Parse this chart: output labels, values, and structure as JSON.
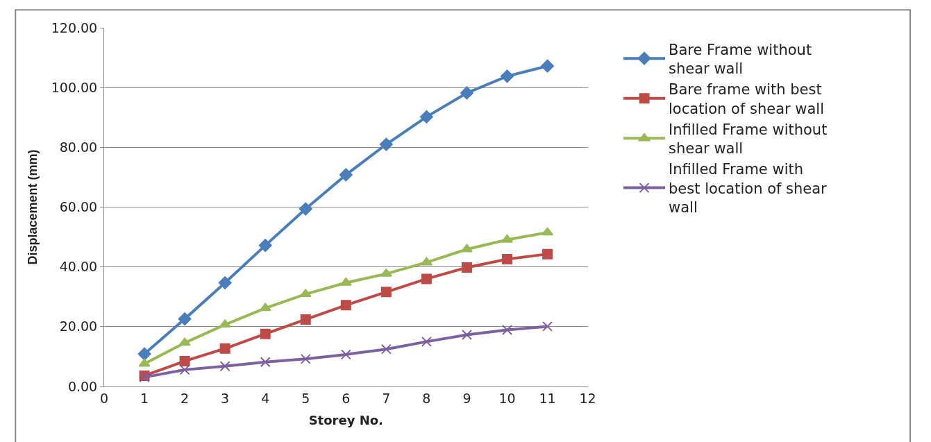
{
  "chart_data": {
    "type": "line",
    "xlabel": "Storey No.",
    "ylabel": "Displacement (mm)",
    "x": [
      1,
      2,
      3,
      4,
      5,
      6,
      7,
      8,
      9,
      10,
      11
    ],
    "xlim": [
      0,
      12
    ],
    "xticks": [
      0,
      1,
      2,
      3,
      4,
      5,
      6,
      7,
      8,
      9,
      10,
      11,
      12
    ],
    "ylim": [
      0,
      120
    ],
    "yticks": [
      {
        "value": 0,
        "label": "0.00"
      },
      {
        "value": 20,
        "label": "20.00"
      },
      {
        "value": 40,
        "label": "40.00"
      },
      {
        "value": 60,
        "label": "60.00"
      },
      {
        "value": 80,
        "label": "80.00"
      },
      {
        "value": 100,
        "label": "100.00"
      },
      {
        "value": 120,
        "label": "120.00"
      }
    ],
    "grid": "y",
    "legend": "right",
    "line_style": "solid",
    "series": [
      {
        "name": "Bare Frame without shear wall",
        "color": "#4a7ebb",
        "marker": "diamond",
        "values": [
          10.9,
          22.6,
          34.7,
          47.2,
          59.4,
          70.8,
          81.0,
          90.2,
          98.2,
          103.8,
          107.2
        ]
      },
      {
        "name": "Bare frame with best location of shear wall",
        "color": "#be4b48",
        "marker": "square",
        "values": [
          3.6,
          8.5,
          12.7,
          17.6,
          22.4,
          27.2,
          31.6,
          36.0,
          39.8,
          42.6,
          44.3
        ]
      },
      {
        "name": "Infilled Frame without shear wall",
        "color": "#98b954",
        "marker": "triangle",
        "values": [
          7.6,
          14.6,
          20.7,
          26.2,
          30.9,
          34.7,
          37.7,
          41.5,
          45.9,
          49.1,
          51.5
        ]
      },
      {
        "name": "Infilled Frame with best location of shear wall",
        "color": "#7d60a0",
        "marker": "cross",
        "values": [
          3.1,
          5.6,
          6.8,
          8.2,
          9.2,
          10.7,
          12.5,
          15.0,
          17.3,
          18.9,
          20.1
        ]
      }
    ]
  }
}
